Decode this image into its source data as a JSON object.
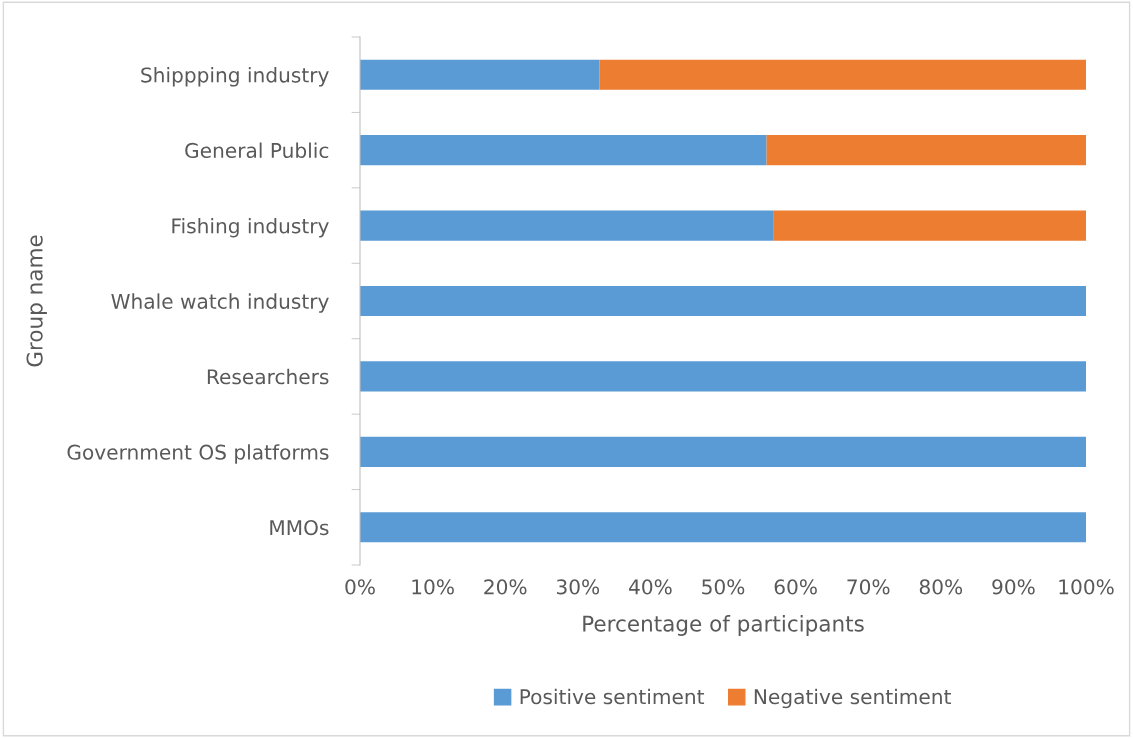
{
  "chart_data": {
    "type": "bar",
    "orientation": "horizontal",
    "stacked": true,
    "xlabel": "Percentage of participants",
    "ylabel": "Group name",
    "categories": [
      "Shippping industry",
      "General Public",
      "Fishing industry",
      "Whale watch industry",
      "Researchers",
      "Government OS platforms",
      "MMOs"
    ],
    "series": [
      {
        "name": "Positive sentiment",
        "color": "#5b9bd5",
        "values": [
          33,
          56,
          57,
          100,
          100,
          100,
          100
        ]
      },
      {
        "name": "Negative sentiment",
        "color": "#ed7d31",
        "values": [
          67,
          44,
          43,
          0,
          0,
          0,
          0
        ]
      }
    ],
    "xlim": [
      0,
      100
    ],
    "xticks": [
      {
        "value": 0,
        "label": "0%"
      },
      {
        "value": 10,
        "label": "10%"
      },
      {
        "value": 20,
        "label": "20%"
      },
      {
        "value": 30,
        "label": "30%"
      },
      {
        "value": 40,
        "label": "40%"
      },
      {
        "value": 50,
        "label": "50%"
      },
      {
        "value": 60,
        "label": "60%"
      },
      {
        "value": 70,
        "label": "70%"
      },
      {
        "value": 80,
        "label": "80%"
      },
      {
        "value": 90,
        "label": "90%"
      },
      {
        "value": 100,
        "label": "100%"
      }
    ],
    "grid": false,
    "legend": "bottom"
  }
}
